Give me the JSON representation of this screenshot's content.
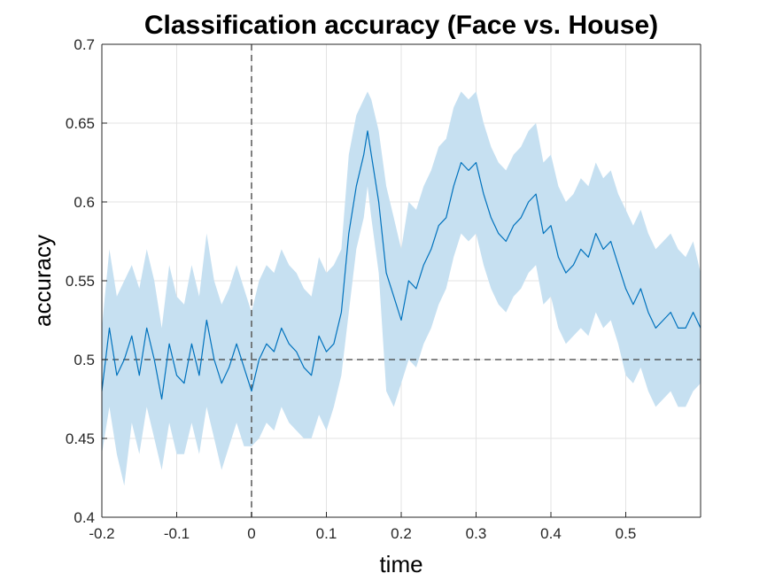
{
  "chart_data": {
    "type": "line",
    "title": "Classification accuracy  (Face vs. House)",
    "xlabel": "time",
    "ylabel": "accuracy",
    "xlim": [
      -0.2,
      0.6
    ],
    "ylim": [
      0.4,
      0.7
    ],
    "xticks": [
      -0.2,
      -0.1,
      0,
      0.1,
      0.2,
      0.3,
      0.4,
      0.5
    ],
    "xtick_labels": [
      "-0.2",
      "-0.1",
      "0",
      "0.1",
      "0.2",
      "0.3",
      "0.4",
      "0.5"
    ],
    "yticks": [
      0.4,
      0.45,
      0.5,
      0.55,
      0.6,
      0.65,
      0.7
    ],
    "ytick_labels": [
      "0.4",
      "0.45",
      "0.5",
      "0.55",
      "0.6",
      "0.65",
      "0.7"
    ],
    "grid": true,
    "reference_lines": {
      "chance_level_y": 0.5,
      "stimulus_onset_x": 0
    },
    "colors": {
      "mean_line": "#0072BD",
      "confidence_band": "#c6e0f1",
      "reference": "#3c3c3c",
      "grid": "#e3e3e3",
      "axis": "#262626"
    },
    "series": [
      {
        "x": [
          -0.2,
          -0.19,
          -0.18,
          -0.17,
          -0.16,
          -0.15,
          -0.14,
          -0.13,
          -0.12,
          -0.11,
          -0.1,
          -0.09,
          -0.08,
          -0.07,
          -0.06,
          -0.05,
          -0.04,
          -0.03,
          -0.02,
          -0.01,
          0,
          0.01,
          0.02,
          0.03,
          0.04,
          0.05,
          0.06,
          0.07,
          0.08,
          0.09,
          0.1,
          0.11,
          0.12,
          0.13,
          0.14,
          0.15,
          0.155,
          0.16,
          0.17,
          0.18,
          0.19,
          0.2,
          0.21,
          0.22,
          0.23,
          0.24,
          0.25,
          0.26,
          0.27,
          0.28,
          0.29,
          0.3,
          0.31,
          0.32,
          0.33,
          0.34,
          0.35,
          0.36,
          0.37,
          0.38,
          0.39,
          0.4,
          0.41,
          0.42,
          0.43,
          0.44,
          0.45,
          0.46,
          0.47,
          0.48,
          0.49,
          0.5,
          0.51,
          0.52,
          0.53,
          0.54,
          0.55,
          0.56,
          0.57,
          0.58,
          0.59,
          0.6
        ],
        "y": [
          0.48,
          0.52,
          0.49,
          0.5,
          0.515,
          0.49,
          0.52,
          0.5,
          0.475,
          0.51,
          0.49,
          0.485,
          0.51,
          0.49,
          0.525,
          0.5,
          0.485,
          0.495,
          0.51,
          0.495,
          0.48,
          0.5,
          0.51,
          0.505,
          0.52,
          0.51,
          0.505,
          0.495,
          0.49,
          0.515,
          0.505,
          0.51,
          0.53,
          0.58,
          0.61,
          0.63,
          0.645,
          0.63,
          0.6,
          0.555,
          0.54,
          0.525,
          0.55,
          0.545,
          0.56,
          0.57,
          0.585,
          0.59,
          0.61,
          0.625,
          0.62,
          0.625,
          0.605,
          0.59,
          0.58,
          0.575,
          0.585,
          0.59,
          0.6,
          0.605,
          0.58,
          0.585,
          0.565,
          0.555,
          0.56,
          0.57,
          0.565,
          0.58,
          0.57,
          0.575,
          0.56,
          0.545,
          0.535,
          0.545,
          0.53,
          0.52,
          0.525,
          0.53,
          0.52,
          0.52,
          0.53,
          0.52
        ],
        "lower": [
          0.44,
          0.47,
          0.44,
          0.42,
          0.46,
          0.44,
          0.47,
          0.45,
          0.43,
          0.46,
          0.44,
          0.44,
          0.46,
          0.44,
          0.47,
          0.45,
          0.43,
          0.445,
          0.46,
          0.445,
          0.445,
          0.45,
          0.46,
          0.455,
          0.47,
          0.46,
          0.455,
          0.45,
          0.45,
          0.465,
          0.455,
          0.47,
          0.49,
          0.53,
          0.57,
          0.59,
          0.61,
          0.59,
          0.555,
          0.48,
          0.47,
          0.485,
          0.5,
          0.495,
          0.51,
          0.52,
          0.535,
          0.545,
          0.565,
          0.58,
          0.575,
          0.58,
          0.56,
          0.545,
          0.535,
          0.53,
          0.54,
          0.545,
          0.555,
          0.56,
          0.535,
          0.54,
          0.52,
          0.51,
          0.515,
          0.52,
          0.515,
          0.53,
          0.52,
          0.525,
          0.51,
          0.49,
          0.485,
          0.495,
          0.48,
          0.47,
          0.475,
          0.48,
          0.47,
          0.47,
          0.48,
          0.485
        ],
        "upper": [
          0.52,
          0.57,
          0.54,
          0.55,
          0.56,
          0.545,
          0.57,
          0.55,
          0.52,
          0.56,
          0.54,
          0.535,
          0.56,
          0.54,
          0.58,
          0.55,
          0.535,
          0.545,
          0.56,
          0.545,
          0.53,
          0.55,
          0.56,
          0.555,
          0.57,
          0.56,
          0.555,
          0.545,
          0.54,
          0.565,
          0.555,
          0.56,
          0.57,
          0.63,
          0.655,
          0.665,
          0.67,
          0.665,
          0.645,
          0.61,
          0.59,
          0.57,
          0.6,
          0.595,
          0.61,
          0.62,
          0.635,
          0.64,
          0.66,
          0.67,
          0.665,
          0.67,
          0.65,
          0.635,
          0.625,
          0.62,
          0.63,
          0.635,
          0.645,
          0.65,
          0.625,
          0.63,
          0.61,
          0.6,
          0.605,
          0.615,
          0.61,
          0.625,
          0.615,
          0.62,
          0.605,
          0.595,
          0.585,
          0.595,
          0.58,
          0.57,
          0.575,
          0.58,
          0.57,
          0.565,
          0.575,
          0.555
        ]
      }
    ]
  }
}
